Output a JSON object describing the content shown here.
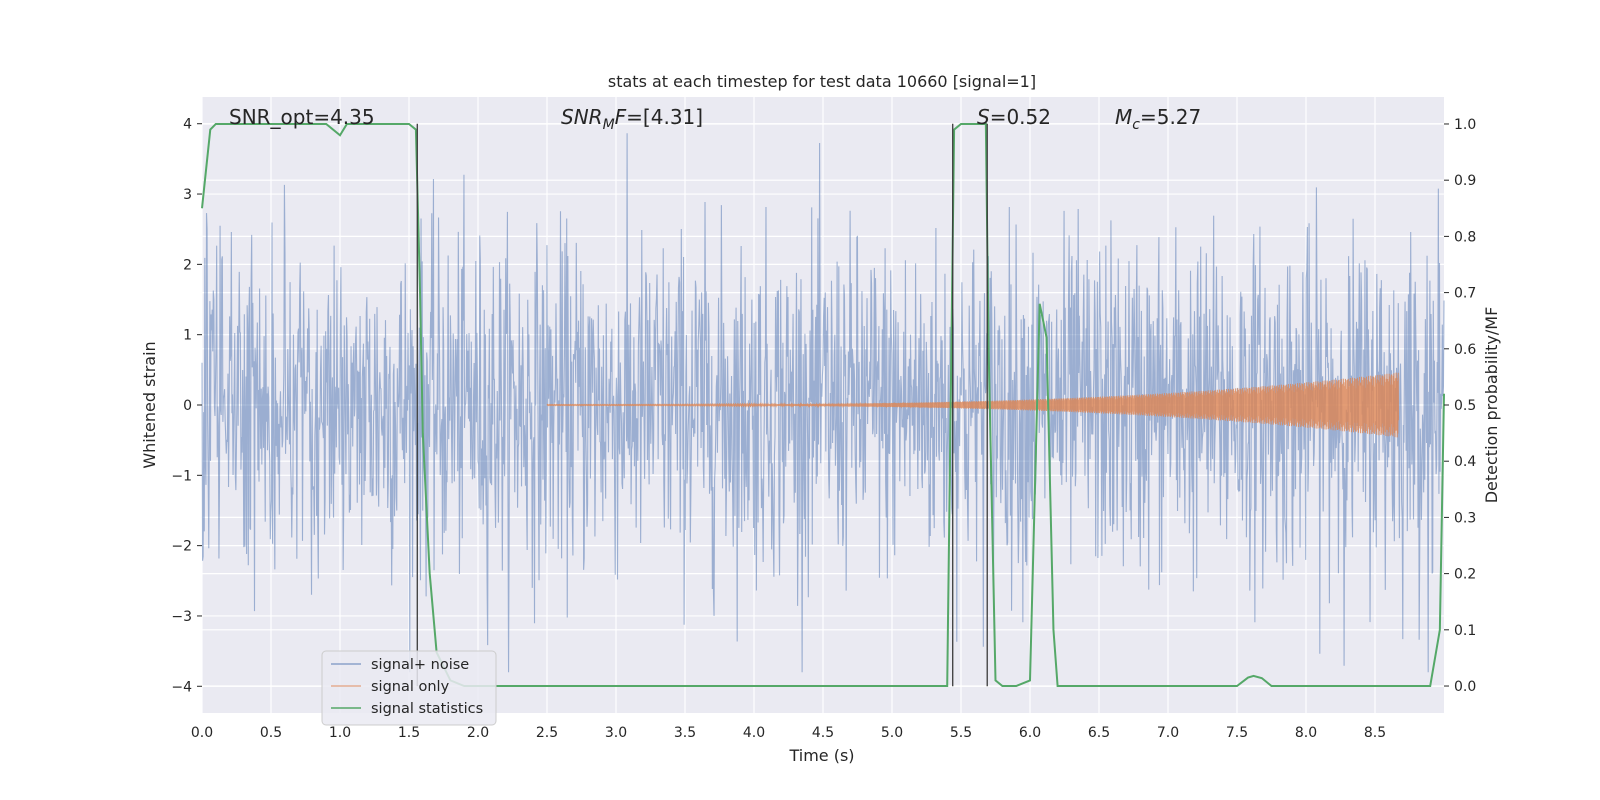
{
  "chart_data": {
    "type": "line",
    "title": "stats at each timestep for test data 10660 [signal=1]",
    "xlabel": "Time (s)",
    "ylabel": "Whitened strain",
    "y2label": "Detection probability/MF",
    "xlim": [
      0.0,
      9.0
    ],
    "ylim": [
      -4.38,
      4.38
    ],
    "y2lim": [
      -0.048,
      1.048
    ],
    "xticks": [
      "0.0",
      "0.5",
      "1.0",
      "1.5",
      "2.0",
      "2.5",
      "3.0",
      "3.5",
      "4.0",
      "4.5",
      "5.0",
      "5.5",
      "6.0",
      "6.5",
      "7.0",
      "7.5",
      "8.0",
      "8.5"
    ],
    "yticks": [
      "−4",
      "−3",
      "−2",
      "−1",
      "0",
      "1",
      "2",
      "3",
      "4"
    ],
    "y2ticks": [
      "0.0",
      "0.1",
      "0.2",
      "0.3",
      "0.4",
      "0.5",
      "0.6",
      "0.7",
      "0.8",
      "0.9",
      "1.0"
    ],
    "grid": true,
    "legend_position": "bottom-left",
    "annotations": {
      "snr_opt": "SNR_opt=4.35",
      "snr_mf": "=[4.31]",
      "snr_mf_main": "SNR",
      "snr_mf_sub": "M",
      "snr_mf_f": "F",
      "s_sym": "S",
      "s_val": "=0.52",
      "mc_sym": "M",
      "mc_sub": "c",
      "mc_val": "=5.27"
    },
    "vertical_markers_x": [
      1.56,
      5.44,
      5.69
    ],
    "series": [
      {
        "name": "signal+ noise",
        "color": "#4c72b0",
        "axis": "left",
        "style": "noise",
        "x_range": [
          0.0,
          9.0
        ],
        "envelope_sigma": 1.0,
        "extreme_range": [
          -3.8,
          3.95
        ]
      },
      {
        "name": "signal only",
        "color": "#dd8452",
        "axis": "left",
        "style": "chirp",
        "x_range": [
          2.5,
          8.67
        ],
        "amplitude_end": 0.46
      },
      {
        "name": "signal statistics",
        "color": "#55a868",
        "axis": "right",
        "x": [
          0.0,
          0.06,
          0.1,
          0.2,
          0.9,
          1.0,
          1.05,
          1.1,
          1.2,
          1.5,
          1.55,
          1.58,
          1.6,
          1.65,
          1.7,
          1.8,
          1.9,
          2.0,
          2.1,
          2.5,
          3.0,
          3.5,
          4.0,
          4.5,
          4.8,
          5.0,
          5.4,
          5.45,
          5.5,
          5.55,
          5.6,
          5.68,
          5.7,
          5.75,
          5.8,
          5.9,
          6.0,
          6.07,
          6.12,
          6.17,
          6.2,
          6.3,
          6.5,
          7.0,
          7.5,
          7.58,
          7.62,
          7.68,
          7.75,
          8.0,
          8.5,
          8.8,
          8.9,
          8.97,
          9.0
        ],
        "y": [
          0.85,
          0.99,
          1.0,
          1.0,
          1.0,
          0.98,
          1.0,
          1.0,
          1.0,
          1.0,
          0.99,
          0.7,
          0.45,
          0.2,
          0.06,
          0.01,
          0.0,
          0.0,
          0.0,
          0.0,
          0.0,
          0.0,
          0.0,
          0.0,
          0.0,
          0.0,
          0.0,
          0.99,
          1.0,
          1.0,
          1.0,
          1.0,
          0.6,
          0.01,
          0.0,
          0.0,
          0.01,
          0.68,
          0.62,
          0.1,
          0.0,
          0.0,
          0.0,
          0.0,
          0.0,
          0.015,
          0.018,
          0.014,
          0.0,
          0.0,
          0.0,
          0.0,
          0.0,
          0.1,
          0.52
        ]
      }
    ]
  }
}
